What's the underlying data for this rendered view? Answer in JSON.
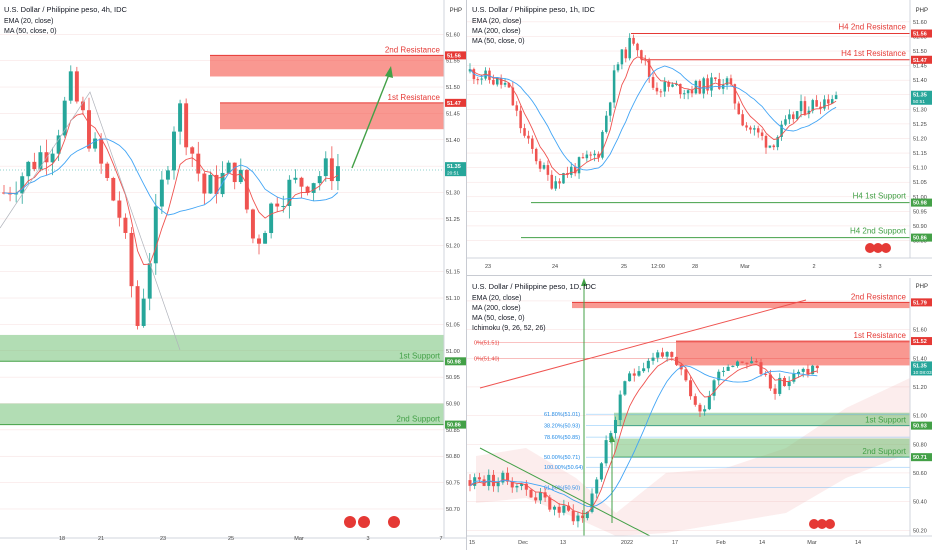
{
  "chart_data": [
    {
      "type": "candlestick",
      "title": "U.S. Dollar / Philippine peso, 4h, IDC",
      "indicators": [
        "EMA (20, close)",
        "MA (50, close, 0)"
      ],
      "x_ticks": [
        "18",
        "21",
        "23",
        "25",
        "Mar",
        "3",
        "7"
      ],
      "y_ticks": [
        "51.65",
        "51.60",
        "51.55",
        "51.50",
        "51.45",
        "51.40",
        "51.35",
        "51.30",
        "51.25",
        "51.20",
        "51.15",
        "51.10",
        "51.05",
        "51.00",
        "50.95",
        "50.90",
        "50.85",
        "50.80",
        "50.75",
        "50.70",
        "50.65"
      ],
      "ylim": [
        50.645,
        51.665
      ],
      "price_labels": [
        {
          "text": "51.56",
          "value": 51.56,
          "color": "#e53935"
        },
        {
          "text": "51.47",
          "value": 51.47,
          "color": "#e53935"
        },
        {
          "text": "51.35",
          "sub": "20:51",
          "value": 51.35,
          "color": "#26a69a"
        },
        {
          "text": "50.98",
          "value": 50.98,
          "color": "#43a047"
        },
        {
          "text": "50.86",
          "value": 50.86,
          "color": "#43a047"
        }
      ],
      "zones": [
        {
          "label": "2nd Resistance",
          "from": 51.52,
          "to": 51.56,
          "kind": "resistance"
        },
        {
          "label": "1st Resistance",
          "from": 51.42,
          "to": 51.47,
          "kind": "resistance"
        },
        {
          "label": "1st Support",
          "from": 50.98,
          "to": 51.03,
          "kind": "support"
        },
        {
          "label": "2nd Support",
          "from": 50.86,
          "to": 50.9,
          "kind": "support"
        }
      ],
      "currency": "PHP"
    },
    {
      "type": "candlestick",
      "title": "U.S. Dollar / Philippine peso, 1h, IDC",
      "indicators": [
        "EMA (20, close)",
        "MA (200, close)",
        "MA (50, close, 0)"
      ],
      "x_ticks": [
        "23",
        "24",
        "25",
        "12:00",
        "28",
        "Mar",
        "2",
        "3"
      ],
      "y_ticks": [
        "51.65",
        "51.60",
        "51.55",
        "51.50",
        "51.45",
        "51.40",
        "51.35",
        "51.30",
        "51.25",
        "51.20",
        "51.15",
        "51.10",
        "51.05",
        "51.00",
        "50.95",
        "50.90",
        "50.85",
        "50.80"
      ],
      "ylim": [
        50.79,
        51.675
      ],
      "price_labels": [
        {
          "text": "51.56",
          "value": 51.56,
          "color": "#e53935"
        },
        {
          "text": "51.47",
          "value": 51.47,
          "color": "#e53935"
        },
        {
          "text": "51.35",
          "sub": "50:51",
          "value": 51.35,
          "color": "#26a69a"
        },
        {
          "text": "50.98",
          "value": 50.98,
          "color": "#43a047"
        },
        {
          "text": "50.86",
          "value": 50.86,
          "color": "#43a047"
        }
      ],
      "levels": [
        {
          "label": "H4 2nd Resistance",
          "value": 51.56,
          "kind": "resistance"
        },
        {
          "label": "H4 1st Resistance",
          "value": 51.47,
          "kind": "resistance"
        },
        {
          "label": "H4 1st Support",
          "value": 50.98,
          "kind": "support"
        },
        {
          "label": "H4 2nd Support",
          "value": 50.86,
          "kind": "support"
        }
      ],
      "currency": "PHP"
    },
    {
      "type": "candlestick",
      "title": "U.S. Dollar / Philippine peso, 1D, IDC",
      "indicators": [
        "EMA (20, close)",
        "MA (200, close)",
        "MA (50, close, 0)",
        "Ichimoku (9, 26, 52, 26)"
      ],
      "x_ticks": [
        "15",
        "Dec",
        "13",
        "2022",
        "17",
        "Feb",
        "14",
        "Mar",
        "14"
      ],
      "y_ticks": [
        "51.80",
        "51.60",
        "51.40",
        "51.20",
        "51.00",
        "50.80",
        "50.60",
        "50.40",
        "50.20"
      ],
      "ylim": [
        50.16,
        51.96
      ],
      "price_labels": [
        {
          "text": "51.79",
          "value": 51.79,
          "color": "#e53935"
        },
        {
          "text": "51.52",
          "value": 51.52,
          "color": "#e53935"
        },
        {
          "text": "51.35",
          "sub": "10:08:03",
          "value": 51.35,
          "color": "#26a69a"
        },
        {
          "text": "50.93",
          "value": 50.93,
          "color": "#43a047"
        },
        {
          "text": "50.71",
          "value": 50.71,
          "color": "#43a047"
        }
      ],
      "zones": [
        {
          "label": "2nd Resistance",
          "from": 51.75,
          "to": 51.79,
          "kind": "resistance"
        },
        {
          "label": "1st Resistance",
          "from": 51.35,
          "to": 51.52,
          "kind": "resistance"
        },
        {
          "label": "1st Support",
          "from": 50.93,
          "to": 51.02,
          "kind": "support"
        },
        {
          "label": "2nd Support",
          "from": 50.71,
          "to": 50.84,
          "kind": "support"
        }
      ],
      "fib": [
        {
          "label": "0%(51.51)",
          "value": 51.51
        },
        {
          "label": "0%(51.40)",
          "value": 51.4
        },
        {
          "label": "61.80%(51.01)",
          "value": 51.01
        },
        {
          "label": "38.20%(50.93)",
          "value": 50.93
        },
        {
          "label": "78.60%(50.85)",
          "value": 50.85
        },
        {
          "label": "50.00%(50.71)",
          "value": 50.71
        },
        {
          "label": "100.00%(50.64)",
          "value": 50.64
        },
        {
          "label": "61.80%(50.50)",
          "value": 50.5
        }
      ],
      "currency": "PHP"
    }
  ],
  "colors": {
    "up": "#26a69a",
    "down": "#ef5350",
    "support": "#43a047",
    "resistance": "#e53935",
    "ema": "#ef5350",
    "ma": "#42a5f5"
  }
}
